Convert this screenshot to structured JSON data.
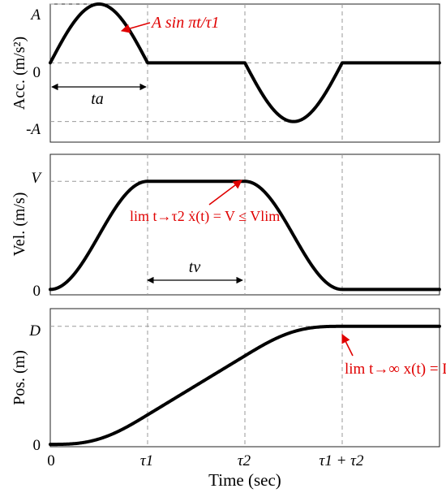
{
  "chart_data": [
    {
      "type": "line",
      "ylabel": "Acc. (m/s²)",
      "y_ticks": [
        "A",
        "0",
        "-A"
      ],
      "ylim": [
        -1.35,
        1.0
      ],
      "series": [
        {
          "x": [
            0,
            0.25,
            0.5,
            0.75,
            1.0,
            1.25,
            1.5,
            1.75,
            2.0,
            2.25,
            2.5,
            2.75,
            3.0,
            3.5,
            4.0
          ],
          "y": [
            0,
            0.71,
            1.0,
            0.71,
            0,
            0,
            0,
            0,
            0,
            -0.71,
            -1.0,
            -0.71,
            0,
            0,
            0
          ]
        }
      ],
      "annotations": [
        {
          "text": "A sin πt/τ1"
        },
        {
          "text": "ta"
        }
      ]
    },
    {
      "type": "line",
      "ylabel": "Vel. (m/s)",
      "y_ticks": [
        "V",
        "0"
      ],
      "ylim": [
        -0.05,
        1.25
      ],
      "series": [
        {
          "x": [
            0,
            0.25,
            0.5,
            0.75,
            1.0,
            1.5,
            2.0,
            2.25,
            2.5,
            2.75,
            3.0,
            3.5,
            4.0
          ],
          "y": [
            0,
            0.15,
            0.5,
            0.85,
            1.0,
            1.0,
            1.0,
            0.85,
            0.5,
            0.15,
            0,
            0,
            0
          ]
        }
      ],
      "annotations": [
        {
          "text": "lim t→τ2 ẋ(t) = V ≤ Vlim"
        },
        {
          "text": "tv"
        }
      ]
    },
    {
      "type": "line",
      "ylabel": "Pos. (m)",
      "y_ticks": [
        "D",
        "0"
      ],
      "ylim": [
        -0.02,
        1.15
      ],
      "series": [
        {
          "x": [
            0,
            0.25,
            0.5,
            0.75,
            1.0,
            1.5,
            2.0,
            2.25,
            2.5,
            2.75,
            3.0,
            3.5,
            4.0
          ],
          "y": [
            0,
            0.009,
            0.067,
            0.185,
            0.333,
            0.5,
            0.667,
            0.753,
            0.833,
            0.898,
            1.0,
            1.0,
            1.0
          ]
        }
      ],
      "annotations": [
        {
          "text": "lim t→∞ x(t) = D"
        }
      ]
    }
  ],
  "x_axis": {
    "label": "Time (sec)",
    "ticks": [
      {
        "value": 0,
        "text": "0"
      },
      {
        "value": 1,
        "text": "τ1"
      },
      {
        "value": 2,
        "text": "τ2"
      },
      {
        "value": 3,
        "text": "τ1 + τ2"
      }
    ],
    "xlim": [
      0,
      4
    ]
  },
  "colors": {
    "curve": "#000000",
    "annotation": "#e00000",
    "guide": "#9a9a9a"
  }
}
